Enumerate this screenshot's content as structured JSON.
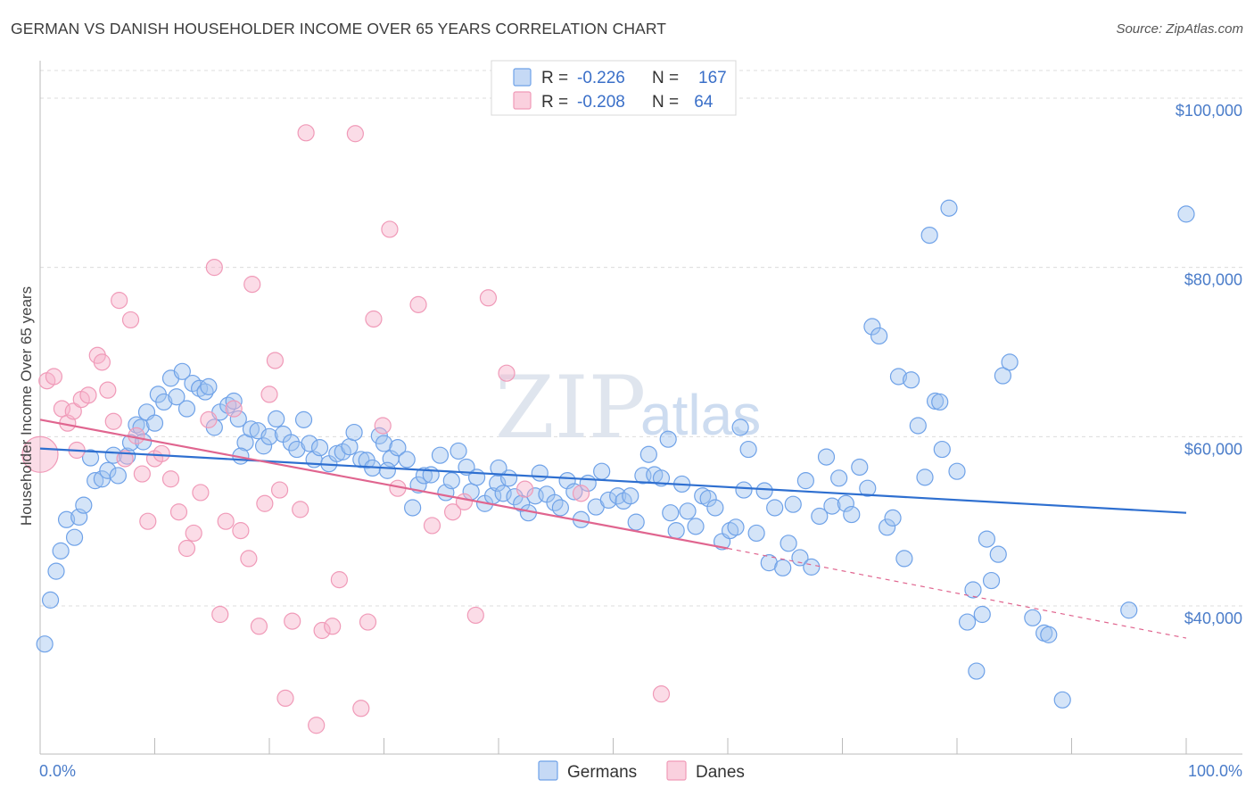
{
  "header": {
    "title": "GERMAN VS DANISH HOUSEHOLDER INCOME OVER 65 YEARS CORRELATION CHART",
    "source": "Source: ZipAtlas.com"
  },
  "watermark": {
    "zip": "ZIP",
    "atlas": "atlas"
  },
  "legend": {
    "rows": [
      {
        "r_label": "R =",
        "r_value": "-0.226",
        "n_label": "N =",
        "n_value": "167",
        "color": "#6fa2e8"
      },
      {
        "r_label": "R =",
        "r_value": "-0.208",
        "n_label": "N =",
        "n_value": " 64",
        "color": "#f09ab8"
      }
    ]
  },
  "bottom_legend": {
    "germans": "Germans",
    "danes": "Danes"
  },
  "chart_data": {
    "type": "scatter",
    "title": "GERMAN VS DANISH HOUSEHOLDER INCOME OVER 65 YEARS CORRELATION CHART",
    "xlabel": "",
    "ylabel": "Householder Income Over 65 years",
    "xlim": [
      0,
      100
    ],
    "ylim": [
      22500,
      104000
    ],
    "x_tick_labels": [
      "0.0%",
      "100.0%"
    ],
    "y_ticks": [
      40000,
      60000,
      80000,
      100000
    ],
    "y_tick_labels": [
      "$40,000",
      "$60,000",
      "$80,000",
      "$100,000"
    ],
    "grid": true,
    "legend_position": "top-center",
    "series": [
      {
        "name": "Germans",
        "color": "#6fa2e8",
        "trend": {
          "x": [
            0,
            100
          ],
          "y": [
            58600,
            51000
          ],
          "style": "solid"
        },
        "points": [
          [
            0.4,
            35500
          ],
          [
            0.9,
            40700
          ],
          [
            1.4,
            44100
          ],
          [
            1.8,
            46500
          ],
          [
            2.3,
            50200
          ],
          [
            3.0,
            48100
          ],
          [
            3.4,
            50500
          ],
          [
            3.8,
            51900
          ],
          [
            4.4,
            57500
          ],
          [
            4.8,
            54800
          ],
          [
            5.4,
            55000
          ],
          [
            5.9,
            56000
          ],
          [
            6.4,
            57800
          ],
          [
            6.8,
            55400
          ],
          [
            7.6,
            57700
          ],
          [
            7.9,
            59300
          ],
          [
            8.4,
            61400
          ],
          [
            8.8,
            61100
          ],
          [
            9.3,
            62900
          ],
          [
            10.0,
            61600
          ],
          [
            10.3,
            65000
          ],
          [
            10.8,
            64100
          ],
          [
            11.4,
            66900
          ],
          [
            11.9,
            64700
          ],
          [
            12.4,
            67700
          ],
          [
            12.8,
            63300
          ],
          [
            13.3,
            66300
          ],
          [
            13.9,
            65700
          ],
          [
            14.4,
            65300
          ],
          [
            14.7,
            65900
          ],
          [
            15.2,
            61100
          ],
          [
            15.7,
            62900
          ],
          [
            16.4,
            63700
          ],
          [
            16.9,
            64200
          ],
          [
            17.3,
            62100
          ],
          [
            17.9,
            59300
          ],
          [
            18.4,
            60900
          ],
          [
            19.0,
            60700
          ],
          [
            19.5,
            58900
          ],
          [
            20.0,
            60000
          ],
          [
            20.6,
            62100
          ],
          [
            21.2,
            60300
          ],
          [
            21.9,
            59300
          ],
          [
            22.4,
            58500
          ],
          [
            23.0,
            62000
          ],
          [
            23.5,
            59200
          ],
          [
            23.9,
            57300
          ],
          [
            24.4,
            58700
          ],
          [
            25.2,
            56800
          ],
          [
            25.9,
            58000
          ],
          [
            26.4,
            58200
          ],
          [
            27.0,
            58800
          ],
          [
            27.4,
            60500
          ],
          [
            28.0,
            57300
          ],
          [
            28.5,
            57200
          ],
          [
            29.0,
            56300
          ],
          [
            29.6,
            60100
          ],
          [
            30.0,
            59200
          ],
          [
            30.6,
            57400
          ],
          [
            31.2,
            58700
          ],
          [
            32.0,
            57300
          ],
          [
            32.5,
            51600
          ],
          [
            33.0,
            54300
          ],
          [
            33.5,
            55400
          ],
          [
            34.1,
            55500
          ],
          [
            34.9,
            57800
          ],
          [
            35.4,
            53400
          ],
          [
            35.9,
            54800
          ],
          [
            36.5,
            58300
          ],
          [
            37.2,
            56400
          ],
          [
            37.6,
            53500
          ],
          [
            38.1,
            55200
          ],
          [
            38.8,
            52100
          ],
          [
            39.5,
            53000
          ],
          [
            39.9,
            54500
          ],
          [
            40.4,
            53300
          ],
          [
            40.9,
            55100
          ],
          [
            41.4,
            52900
          ],
          [
            42.0,
            52100
          ],
          [
            42.6,
            51000
          ],
          [
            43.2,
            53000
          ],
          [
            43.6,
            55700
          ],
          [
            44.2,
            53200
          ],
          [
            44.9,
            52200
          ],
          [
            45.4,
            51600
          ],
          [
            46.0,
            54800
          ],
          [
            46.6,
            53500
          ],
          [
            47.2,
            50200
          ],
          [
            47.8,
            54500
          ],
          [
            48.5,
            51700
          ],
          [
            49.0,
            55900
          ],
          [
            49.6,
            52500
          ],
          [
            50.4,
            53000
          ],
          [
            50.9,
            52400
          ],
          [
            51.5,
            53000
          ],
          [
            52.0,
            49900
          ],
          [
            52.6,
            55400
          ],
          [
            53.1,
            57900
          ],
          [
            53.6,
            55500
          ],
          [
            54.2,
            55100
          ],
          [
            55.0,
            51000
          ],
          [
            55.5,
            48900
          ],
          [
            56.0,
            54400
          ],
          [
            56.5,
            51200
          ],
          [
            57.2,
            49400
          ],
          [
            57.8,
            53000
          ],
          [
            58.3,
            52700
          ],
          [
            58.9,
            51600
          ],
          [
            59.5,
            47600
          ],
          [
            60.2,
            48900
          ],
          [
            60.7,
            49300
          ],
          [
            61.1,
            61100
          ],
          [
            61.8,
            58500
          ],
          [
            62.5,
            48600
          ],
          [
            63.2,
            53600
          ],
          [
            63.6,
            45100
          ],
          [
            64.1,
            51600
          ],
          [
            64.8,
            44500
          ],
          [
            65.3,
            47400
          ],
          [
            65.7,
            52000
          ],
          [
            66.3,
            45700
          ],
          [
            66.8,
            54800
          ],
          [
            67.3,
            44600
          ],
          [
            68.0,
            50600
          ],
          [
            68.6,
            57600
          ],
          [
            69.1,
            51800
          ],
          [
            69.7,
            55100
          ],
          [
            70.3,
            52100
          ],
          [
            70.8,
            50800
          ],
          [
            71.5,
            56400
          ],
          [
            72.2,
            53900
          ],
          [
            72.6,
            73000
          ],
          [
            73.2,
            71900
          ],
          [
            73.9,
            49300
          ],
          [
            74.4,
            50400
          ],
          [
            74.9,
            67100
          ],
          [
            75.4,
            45600
          ],
          [
            76.0,
            66700
          ],
          [
            76.6,
            61300
          ],
          [
            77.2,
            55200
          ],
          [
            77.6,
            83800
          ],
          [
            78.1,
            64200
          ],
          [
            78.7,
            58500
          ],
          [
            79.3,
            87000
          ],
          [
            80.0,
            55900
          ],
          [
            80.9,
            38100
          ],
          [
            81.4,
            41900
          ],
          [
            81.7,
            32300
          ],
          [
            82.2,
            39000
          ],
          [
            82.6,
            47900
          ],
          [
            83.0,
            43000
          ],
          [
            83.6,
            46100
          ],
          [
            84.0,
            67200
          ],
          [
            84.6,
            68800
          ],
          [
            86.6,
            38600
          ],
          [
            87.6,
            36800
          ],
          [
            88.0,
            36600
          ],
          [
            89.2,
            28900
          ],
          [
            95.0,
            39500
          ],
          [
            100.0,
            86300
          ],
          [
            78.5,
            64100
          ],
          [
            61.4,
            53700
          ],
          [
            54.8,
            59700
          ],
          [
            40.0,
            56300
          ],
          [
            30.3,
            56000
          ],
          [
            17.5,
            57700
          ],
          [
            9.0,
            59400
          ]
        ]
      },
      {
        "name": "Danes",
        "color": "#f09ab8",
        "trend": {
          "x": [
            0,
            60
          ],
          "y": [
            62000,
            46800
          ],
          "style": "solid",
          "extend_to": [
            100,
            36200
          ],
          "extend_style": "dashed"
        },
        "points": [
          [
            0.0,
            57900
          ],
          [
            0.6,
            66600
          ],
          [
            1.2,
            67100
          ],
          [
            1.9,
            63300
          ],
          [
            2.4,
            61600
          ],
          [
            2.9,
            63000
          ],
          [
            3.2,
            58400
          ],
          [
            3.6,
            64400
          ],
          [
            4.2,
            64900
          ],
          [
            5.0,
            69600
          ],
          [
            5.4,
            68800
          ],
          [
            5.9,
            65500
          ],
          [
            6.4,
            61800
          ],
          [
            6.9,
            76100
          ],
          [
            7.4,
            57400
          ],
          [
            7.9,
            73800
          ],
          [
            8.4,
            60100
          ],
          [
            8.9,
            55600
          ],
          [
            9.4,
            50000
          ],
          [
            10.0,
            57400
          ],
          [
            10.6,
            58000
          ],
          [
            11.4,
            55000
          ],
          [
            12.1,
            51100
          ],
          [
            12.8,
            46800
          ],
          [
            13.4,
            48600
          ],
          [
            14.0,
            53400
          ],
          [
            14.7,
            62000
          ],
          [
            15.2,
            80000
          ],
          [
            15.7,
            39000
          ],
          [
            16.2,
            50000
          ],
          [
            16.9,
            63300
          ],
          [
            17.5,
            48900
          ],
          [
            18.2,
            45600
          ],
          [
            18.5,
            78000
          ],
          [
            19.1,
            37600
          ],
          [
            19.6,
            52100
          ],
          [
            20.0,
            65000
          ],
          [
            20.5,
            69000
          ],
          [
            20.9,
            53700
          ],
          [
            21.4,
            29100
          ],
          [
            22.0,
            38200
          ],
          [
            22.7,
            51400
          ],
          [
            23.2,
            95900
          ],
          [
            24.1,
            25900
          ],
          [
            24.6,
            37100
          ],
          [
            25.5,
            37600
          ],
          [
            26.1,
            43100
          ],
          [
            27.5,
            95800
          ],
          [
            28.0,
            27900
          ],
          [
            28.6,
            38100
          ],
          [
            29.1,
            73900
          ],
          [
            29.9,
            61300
          ],
          [
            30.5,
            84500
          ],
          [
            31.2,
            53900
          ],
          [
            33.0,
            75600
          ],
          [
            34.2,
            49500
          ],
          [
            36.0,
            51100
          ],
          [
            37.0,
            52300
          ],
          [
            38.0,
            38900
          ],
          [
            39.1,
            76400
          ],
          [
            40.7,
            67500
          ],
          [
            42.3,
            53800
          ],
          [
            47.2,
            53300
          ],
          [
            54.2,
            29600
          ]
        ]
      }
    ]
  }
}
